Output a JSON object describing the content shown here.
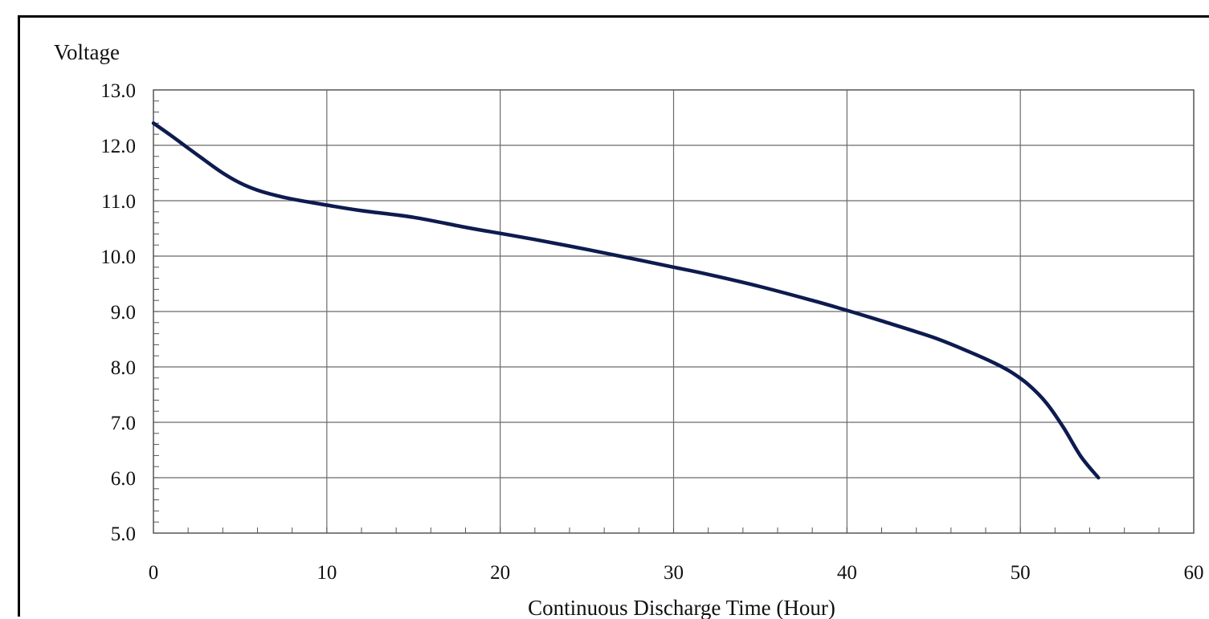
{
  "chart_data": {
    "type": "line",
    "title": "",
    "ylabel": "Voltage",
    "xlabel": "Continuous Discharge Time (Hour)",
    "xlim": [
      0,
      60
    ],
    "ylim": [
      5.0,
      13.0
    ],
    "x_ticks": [
      0,
      10,
      20,
      30,
      40,
      50,
      60
    ],
    "x_tick_labels": [
      "0",
      "10",
      "20",
      "30",
      "40",
      "50",
      "60"
    ],
    "y_ticks": [
      5,
      6,
      7,
      8,
      9,
      10,
      11,
      12,
      13
    ],
    "y_tick_labels": [
      "5.0",
      "6.0",
      "7.0",
      "8.0",
      "9.0",
      "10.0",
      "11.0",
      "12.0",
      "13.0"
    ],
    "grid": true,
    "legend": "none",
    "series": [
      {
        "color": "#0d1b4f",
        "x": [
          0,
          1,
          2,
          3,
          4,
          5,
          6,
          7,
          8,
          10,
          12,
          15,
          18,
          20,
          22,
          25,
          28,
          30,
          32,
          35,
          38,
          40,
          42,
          45,
          47,
          48.5,
          49.5,
          50.5,
          51.5,
          52.5,
          53.5,
          54.5
        ],
        "y": [
          12.4,
          12.18,
          11.95,
          11.72,
          11.5,
          11.32,
          11.19,
          11.1,
          11.03,
          10.92,
          10.82,
          10.7,
          10.52,
          10.41,
          10.3,
          10.12,
          9.93,
          9.8,
          9.67,
          9.45,
          9.2,
          9.02,
          8.83,
          8.53,
          8.28,
          8.07,
          7.9,
          7.67,
          7.35,
          6.9,
          6.38,
          6.0
        ]
      }
    ]
  }
}
